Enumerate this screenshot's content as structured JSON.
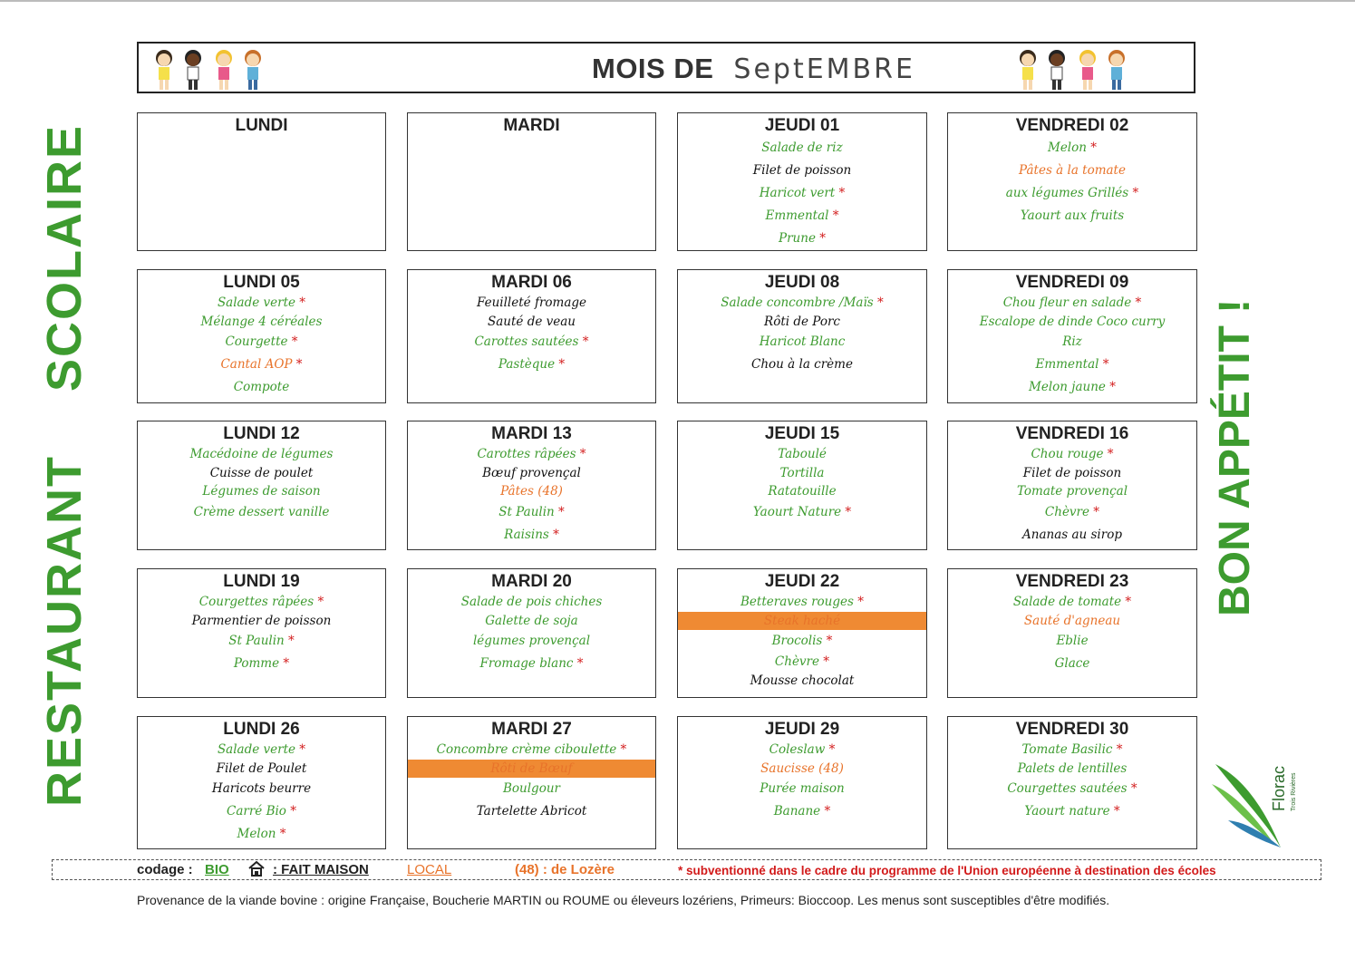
{
  "header": {
    "title_prefix": "MOIS DE",
    "title_month": "SeptEMBRE"
  },
  "vertical_left": {
    "word1": "RESTAURANT",
    "word2": "SCOLAIRE"
  },
  "vertical_right": "BON APPÉTIT !",
  "colors": {
    "green": "#3d9b2f",
    "orange": "#e8732a",
    "red": "#d21a1a",
    "bar": "#ef8a33"
  },
  "weeks": [
    [
      {
        "day": "LUNDI",
        "items": []
      },
      {
        "day": "MARDI",
        "items": []
      },
      {
        "day": "JEUDI 01",
        "items": [
          {
            "t": "Salade de riz",
            "c": "green"
          },
          {
            "t": "Filet de poisson",
            "c": "black"
          },
          {
            "t": "Haricot vert",
            "c": "green",
            "star": true
          },
          {
            "t": "Emmental",
            "c": "green",
            "star": true
          },
          {
            "t": "Prune",
            "c": "green",
            "star": true
          }
        ]
      },
      {
        "day": "VENDREDI 02",
        "items": [
          {
            "t": "Melon",
            "c": "green",
            "star": true
          },
          {
            "t": "Pâtes à la tomate",
            "c": "orange"
          },
          {
            "t": "aux légumes Grillés",
            "c": "green",
            "star": true
          },
          {
            "t": "Yaourt aux fruits",
            "c": "green"
          }
        ]
      }
    ],
    [
      {
        "day": "LUNDI 05",
        "items": [
          {
            "t": "Salade verte",
            "c": "green",
            "star": true,
            "tight": true
          },
          {
            "t": "Mélange 4 céréales",
            "c": "green",
            "tight": true
          },
          {
            "t": "Courgette",
            "c": "green",
            "star": true
          },
          {
            "t": "Cantal AOP",
            "c": "orange",
            "star": true
          },
          {
            "t": "Compote",
            "c": "green"
          }
        ]
      },
      {
        "day": "MARDI 06",
        "items": [
          {
            "t": "Feuilleté fromage",
            "c": "black",
            "tight": true
          },
          {
            "t": "Sauté de veau",
            "c": "black",
            "tight": true
          },
          {
            "t": "Carottes sautées",
            "c": "green",
            "star": true
          },
          {
            "t": "Pastèque",
            "c": "green",
            "star": true
          }
        ]
      },
      {
        "day": "JEUDI 08",
        "items": [
          {
            "t": "Salade concombre /Maïs",
            "c": "green",
            "star": true,
            "tight": true
          },
          {
            "t": "Rôti de Porc",
            "c": "black",
            "tight": true
          },
          {
            "t": "Haricot Blanc",
            "c": "green"
          },
          {
            "t": "Chou à la crème",
            "c": "black"
          }
        ]
      },
      {
        "day": "VENDREDI 09",
        "items": [
          {
            "t": "Chou fleur en salade",
            "c": "green",
            "star": true,
            "tight": true
          },
          {
            "t": "Escalope de dinde Coco curry",
            "c": "green",
            "tight": true
          },
          {
            "t": "Riz",
            "c": "green"
          },
          {
            "t": "Emmental",
            "c": "green",
            "star": true
          },
          {
            "t": "Melon jaune",
            "c": "green",
            "star": true
          }
        ]
      }
    ],
    [
      {
        "day": "LUNDI 12",
        "items": [
          {
            "t": "Macédoine de légumes",
            "c": "green",
            "tight": true
          },
          {
            "t": "Cuisse de poulet",
            "c": "black",
            "tight": true
          },
          {
            "t": "Légumes de saison",
            "c": "green",
            "tight": true
          },
          {
            "t": "Crème dessert vanille",
            "c": "green"
          }
        ]
      },
      {
        "day": "MARDI 13",
        "items": [
          {
            "t": "Carottes râpées",
            "c": "green",
            "star": true,
            "tight": true
          },
          {
            "t": "Bœuf provençal",
            "c": "black",
            "tight": true
          },
          {
            "t": "Pâtes (48)",
            "c": "orange",
            "tight": true
          },
          {
            "t": "St Paulin",
            "c": "green",
            "star": true
          },
          {
            "t": "Raisins",
            "c": "green",
            "star": true
          }
        ]
      },
      {
        "day": "JEUDI 15",
        "items": [
          {
            "t": "Taboulé",
            "c": "green",
            "tight": true
          },
          {
            "t": "Tortilla",
            "c": "green",
            "tight": true
          },
          {
            "t": "Ratatouille",
            "c": "green",
            "tight": true
          },
          {
            "t": "Yaourt Nature",
            "c": "green",
            "star": true
          }
        ]
      },
      {
        "day": "VENDREDI 16",
        "items": [
          {
            "t": "Chou rouge",
            "c": "green",
            "star": true,
            "tight": true
          },
          {
            "t": "Filet de poisson",
            "c": "black",
            "tight": true
          },
          {
            "t": "Tomate provençal",
            "c": "green",
            "tight": true
          },
          {
            "t": "Chèvre",
            "c": "green",
            "star": true
          },
          {
            "t": "Ananas au sirop",
            "c": "black"
          }
        ]
      }
    ],
    [
      {
        "day": "LUNDI 19",
        "items": [
          {
            "t": "Courgettes râpées",
            "c": "green",
            "star": true,
            "tight": true
          },
          {
            "t": "Parmentier de poisson",
            "c": "black",
            "tight": true
          },
          {
            "t": "St Paulin",
            "c": "green",
            "star": true
          },
          {
            "t": "Pomme",
            "c": "green",
            "star": true
          }
        ]
      },
      {
        "day": "MARDI 20",
        "items": [
          {
            "t": "Salade de pois chiches",
            "c": "green",
            "tight": true
          },
          {
            "t": "Galette de soja",
            "c": "green",
            "tight": true
          },
          {
            "t": "légumes provençal",
            "c": "green"
          },
          {
            "t": "Fromage blanc",
            "c": "green",
            "star": true
          }
        ]
      },
      {
        "day": "JEUDI 22",
        "items": [
          {
            "t": "Betteraves rouges",
            "c": "green",
            "star": true,
            "tight": true
          },
          {
            "t": "Steak haché",
            "c": "bar",
            "tight": true
          },
          {
            "t": "Brocolis",
            "c": "green",
            "star": true
          },
          {
            "t": "Chèvre",
            "c": "green",
            "star": true,
            "tight": true
          },
          {
            "t": "Mousse chocolat",
            "c": "black",
            "tight": true
          }
        ]
      },
      {
        "day": "VENDREDI 23",
        "items": [
          {
            "t": "Salade de tomate",
            "c": "green",
            "star": true,
            "tight": true
          },
          {
            "t": "Sauté d'agneau",
            "c": "orange",
            "tight": true
          },
          {
            "t": "Eblie",
            "c": "green"
          },
          {
            "t": "Glace",
            "c": "green"
          }
        ]
      }
    ],
    [
      {
        "day": "LUNDI 26",
        "items": [
          {
            "t": "Salade verte",
            "c": "green",
            "star": true,
            "tight": true
          },
          {
            "t": "Filet de Poulet",
            "c": "black",
            "tight": true
          },
          {
            "t": "Haricots beurre",
            "c": "black"
          },
          {
            "t": "Carré Bio",
            "c": "green",
            "star": true
          },
          {
            "t": "Melon",
            "c": "green",
            "star": true
          }
        ]
      },
      {
        "day": "MARDI 27",
        "items": [
          {
            "t": "Concombre crème ciboulette",
            "c": "green",
            "star": true,
            "tight": true
          },
          {
            "t": "Rôti de Bœuf",
            "c": "bar",
            "tight": true
          },
          {
            "t": "Boulgour",
            "c": "green"
          },
          {
            "t": "Tartelette Abricot",
            "c": "black"
          }
        ]
      },
      {
        "day": "JEUDI 29",
        "items": [
          {
            "t": "Coleslaw",
            "c": "green",
            "star": true,
            "tight": true
          },
          {
            "t": "Saucisse (48)",
            "c": "orange",
            "tight": true
          },
          {
            "t": "Purée maison",
            "c": "green"
          },
          {
            "t": "Banane",
            "c": "green",
            "star": true
          }
        ]
      },
      {
        "day": "VENDREDI 30",
        "items": [
          {
            "t": "Tomate Basilic",
            "c": "green",
            "star": true,
            "tight": true
          },
          {
            "t": "Palets de lentilles",
            "c": "green",
            "tight": true
          },
          {
            "t": "Courgettes sautées",
            "c": "green",
            "star": true
          },
          {
            "t": "Yaourt nature",
            "c": "green",
            "star": true
          }
        ]
      }
    ]
  ],
  "legend": {
    "label": "codage :",
    "bio": "BIO",
    "fait_maison": ": FAIT MAISON",
    "local": "LOCAL",
    "lozere": "(48) : de Lozère",
    "subvention": "* subventionné dans le cadre du programme de l'Union européenne à destination des écoles"
  },
  "footer": "Provenance de la viande bovine : origine Française, Boucherie MARTIN ou ROUME ou éleveurs lozériens, Primeurs: Bioccoop. Les menus sont susceptibles d'être modifiés.",
  "logo": {
    "name": "Florac",
    "sub": "Trois Rivières"
  }
}
